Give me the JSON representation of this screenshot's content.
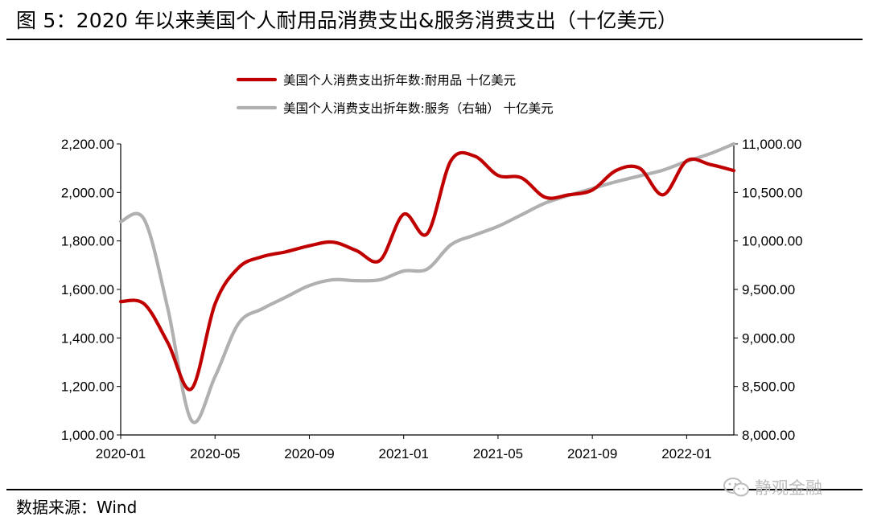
{
  "figure": {
    "title": "图 5：2020 年以来美国个人耐用品消费支出&服务消费支出（十亿美元）",
    "source": "数据来源：Wind",
    "watermark": "静观金融",
    "watermark_icon": "wechat-icon"
  },
  "chart_data": {
    "type": "line",
    "title": "图 5：2020 年以来美国个人耐用品消费支出&服务消费支出（十亿美元）",
    "x_tick_labels": [
      "2020-01",
      "2020-05",
      "2020-09",
      "2021-01",
      "2021-05",
      "2021-09",
      "2022-01"
    ],
    "x": [
      "2020-01",
      "2020-02",
      "2020-03",
      "2020-04",
      "2020-05",
      "2020-06",
      "2020-07",
      "2020-08",
      "2020-09",
      "2020-10",
      "2020-11",
      "2020-12",
      "2021-01",
      "2021-02",
      "2021-03",
      "2021-04",
      "2021-05",
      "2021-06",
      "2021-07",
      "2021-08",
      "2021-09",
      "2021-10",
      "2021-11",
      "2021-12",
      "2022-01",
      "2022-02",
      "2022-03"
    ],
    "left_axis": {
      "ylim": [
        1000,
        2200
      ],
      "ticks": [
        1000,
        1200,
        1400,
        1600,
        1800,
        2000,
        2200
      ],
      "tick_labels": [
        "1,000.00",
        "1,200.00",
        "1,400.00",
        "1,600.00",
        "1,800.00",
        "2,000.00",
        "2,200.00"
      ]
    },
    "right_axis": {
      "ylim": [
        8000,
        11000
      ],
      "ticks": [
        8000,
        8500,
        9000,
        9500,
        10000,
        10500,
        11000
      ],
      "tick_labels": [
        "8,000.00",
        "8,500.00",
        "9,000.00",
        "9,500.00",
        "10,000.00",
        "10,500.00",
        "11,000.00"
      ]
    },
    "series": [
      {
        "name": "美国个人消费支出折年数:耐用品 十亿美元",
        "axis": "left",
        "color": "#c00000",
        "values": [
          1550,
          1540,
          1380,
          1190,
          1540,
          1690,
          1735,
          1755,
          1780,
          1795,
          1760,
          1720,
          1910,
          1830,
          2130,
          2150,
          2070,
          2060,
          1980,
          1990,
          2010,
          2090,
          2100,
          1990,
          2130,
          2115,
          2090
        ]
      },
      {
        "name": "美国个人消费支出折年数:服务（右轴） 十亿美元",
        "axis": "right",
        "color": "#b0b0b0",
        "values": [
          10200,
          10220,
          9300,
          8150,
          8600,
          9150,
          9300,
          9420,
          9540,
          9600,
          9590,
          9600,
          9690,
          9710,
          9960,
          10060,
          10150,
          10270,
          10390,
          10470,
          10540,
          10610,
          10670,
          10730,
          10820,
          10900,
          11000
        ]
      }
    ],
    "legend_position": "top-center",
    "grid": false
  }
}
